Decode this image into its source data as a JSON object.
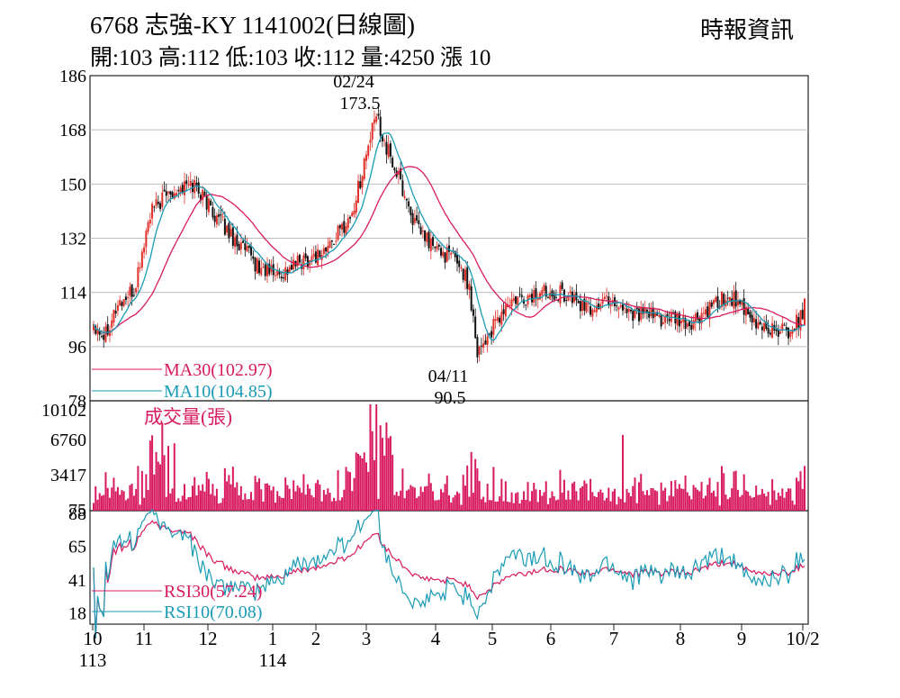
{
  "header": {
    "title": "6768  志強-KY 1141002(日線圖)",
    "source": "時報資訊",
    "quote": "開:103 高:112 低:103 收:112 量:4250 漲 10"
  },
  "colors": {
    "up": "#e0302a",
    "down": "#111111",
    "ma10": "#1a9bb5",
    "ma30": "#d81b60",
    "volume": "#d81b60",
    "rsi10": "#1a9bb5",
    "rsi30": "#d81b60",
    "grid": "#bdbdbd"
  },
  "chart_data": [
    {
      "type": "candlestick",
      "ylim": [
        78,
        186
      ],
      "yticks": [
        "186",
        "168",
        "150",
        "132",
        "114",
        "96",
        "78"
      ],
      "ytick_values": [
        186,
        168,
        150,
        132,
        114,
        96,
        78
      ],
      "grid": true,
      "annotations": [
        {
          "date": "02/24",
          "value": "173.5",
          "kind": "high"
        },
        {
          "date": "04/11",
          "value": "90.5",
          "kind": "low"
        }
      ],
      "legend": [
        {
          "label": "MA30(102.97)",
          "color": "#d81b60"
        },
        {
          "label": "MA10(104.85)",
          "color": "#1a9bb5"
        }
      ],
      "last_bar": {
        "open": 103,
        "high": 112,
        "low": 103,
        "close": 112
      },
      "note": "Daily OHLC candles with MA10 and MA30 overlays; intermediate values estimated from the figure."
    },
    {
      "type": "bar",
      "title": "成交量(張)",
      "ylim": [
        0,
        10102
      ],
      "yticks": [
        "10102",
        "6760",
        "3417",
        "75"
      ],
      "ytick_values": [
        10102,
        6760,
        3417,
        75
      ],
      "last_value": 4250
    },
    {
      "type": "line",
      "ylim": [
        10,
        90
      ],
      "yticks": [
        "88",
        "65",
        "41",
        "18"
      ],
      "ytick_values": [
        88,
        65,
        41,
        18
      ],
      "legend": [
        {
          "label": "RSI30(57.24)",
          "color": "#d81b60"
        },
        {
          "label": "RSI10(70.08)",
          "color": "#1a9bb5"
        }
      ]
    }
  ],
  "xaxis": {
    "labels": [
      {
        "month": "10",
        "year": "113"
      },
      {
        "month": "11",
        "year": ""
      },
      {
        "month": "12",
        "year": ""
      },
      {
        "month": "1",
        "year": "114"
      },
      {
        "month": "2",
        "year": ""
      },
      {
        "month": "3",
        "year": ""
      },
      {
        "month": "4",
        "year": ""
      },
      {
        "month": "5",
        "year": ""
      },
      {
        "month": "6",
        "year": ""
      },
      {
        "month": "7",
        "year": ""
      },
      {
        "month": "8",
        "year": ""
      },
      {
        "month": "9",
        "year": ""
      },
      {
        "month": "10/2",
        "year": ""
      }
    ]
  }
}
